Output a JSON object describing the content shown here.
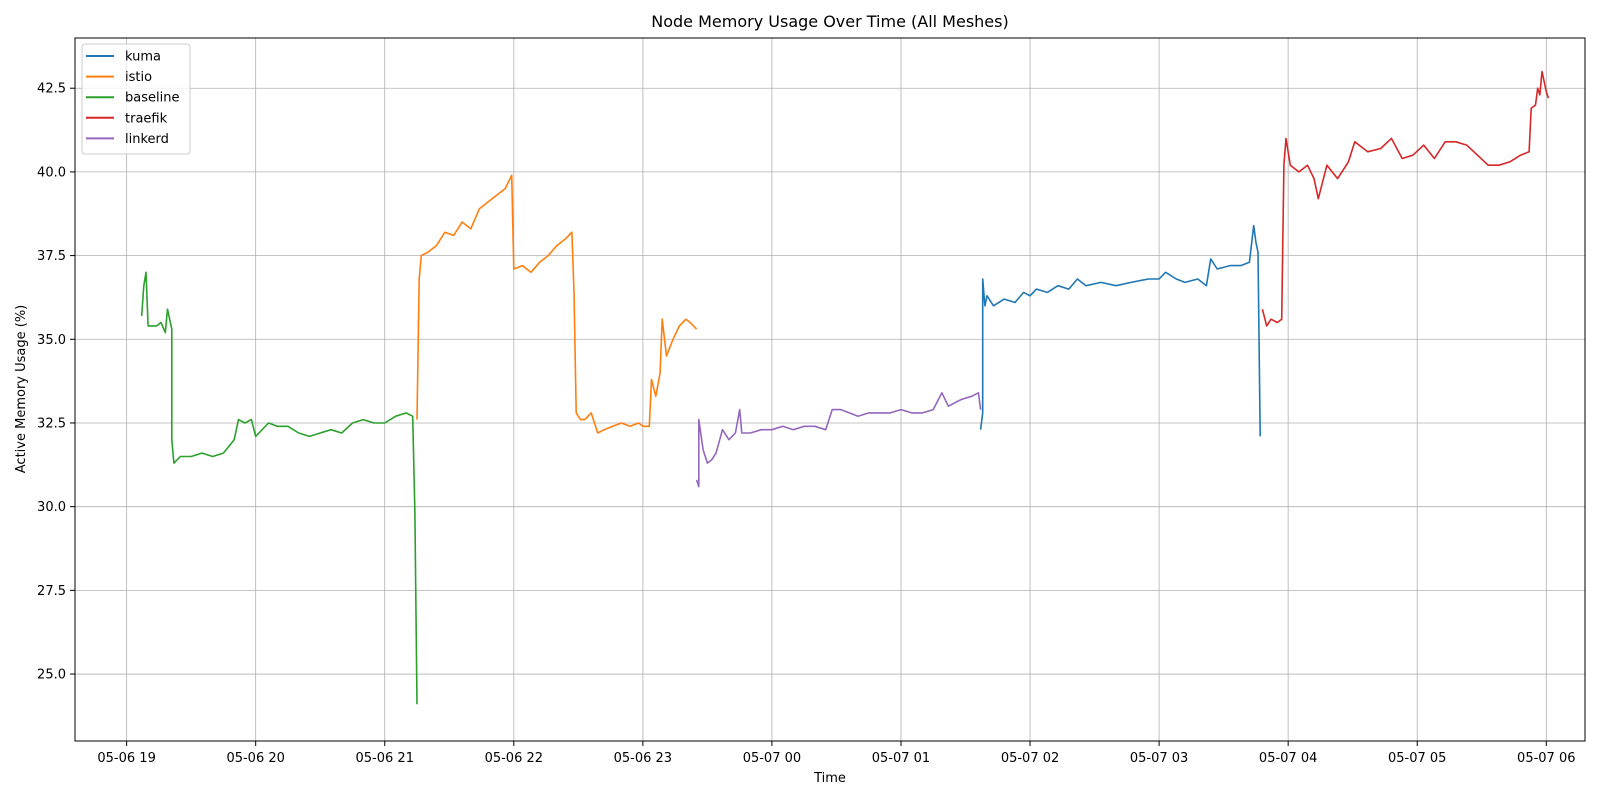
{
  "chart_data": {
    "type": "line",
    "title": "Node Memory Usage Over Time (All Meshes)",
    "xlabel": "Time",
    "ylabel": "Active Memory Usage (%)",
    "xlim": [
      "05-06 18:36",
      "05-07 06:18"
    ],
    "ylim": [
      23.0,
      44.0
    ],
    "x_ticks": [
      "05-06 19",
      "05-06 20",
      "05-06 21",
      "05-06 22",
      "05-06 23",
      "05-07 00",
      "05-07 01",
      "05-07 02",
      "05-07 03",
      "05-07 04",
      "05-07 05",
      "05-07 06"
    ],
    "y_ticks": [
      25.0,
      27.5,
      30.0,
      32.5,
      35.0,
      37.5,
      40.0,
      42.5
    ],
    "grid": true,
    "legend_position": "upper-left",
    "series": [
      {
        "name": "kuma",
        "color": "#1f77b4",
        "points": [
          [
            "05-07 01:37",
            32.3
          ],
          [
            "05-07 01:38",
            32.8
          ],
          [
            "05-07 01:38",
            36.8
          ],
          [
            "05-07 01:39",
            36.0
          ],
          [
            "05-07 01:40",
            36.3
          ],
          [
            "05-07 01:43",
            36.0
          ],
          [
            "05-07 01:48",
            36.2
          ],
          [
            "05-07 01:53",
            36.1
          ],
          [
            "05-07 01:57",
            36.4
          ],
          [
            "05-07 02:00",
            36.3
          ],
          [
            "05-07 02:03",
            36.5
          ],
          [
            "05-07 02:08",
            36.4
          ],
          [
            "05-07 02:13",
            36.6
          ],
          [
            "05-07 02:18",
            36.5
          ],
          [
            "05-07 02:22",
            36.8
          ],
          [
            "05-07 02:26",
            36.6
          ],
          [
            "05-07 02:33",
            36.7
          ],
          [
            "05-07 02:40",
            36.6
          ],
          [
            "05-07 02:47",
            36.7
          ],
          [
            "05-07 02:55",
            36.8
          ],
          [
            "05-07 03:00",
            36.8
          ],
          [
            "05-07 03:03",
            37.0
          ],
          [
            "05-07 03:08",
            36.8
          ],
          [
            "05-07 03:12",
            36.7
          ],
          [
            "05-07 03:18",
            36.8
          ],
          [
            "05-07 03:22",
            36.6
          ],
          [
            "05-07 03:24",
            37.4
          ],
          [
            "05-07 03:27",
            37.1
          ],
          [
            "05-07 03:33",
            37.2
          ],
          [
            "05-07 03:38",
            37.2
          ],
          [
            "05-07 03:42",
            37.3
          ],
          [
            "05-07 03:44",
            38.4
          ],
          [
            "05-07 03:45",
            37.9
          ],
          [
            "05-07 03:46",
            37.6
          ],
          [
            "05-07 03:47",
            32.1
          ]
        ]
      },
      {
        "name": "istio",
        "color": "#ff7f0e",
        "points": [
          [
            "05-06 21:15",
            32.6
          ],
          [
            "05-06 21:16",
            36.8
          ],
          [
            "05-06 21:17",
            37.5
          ],
          [
            "05-06 21:20",
            37.6
          ],
          [
            "05-06 21:24",
            37.8
          ],
          [
            "05-06 21:28",
            38.2
          ],
          [
            "05-06 21:32",
            38.1
          ],
          [
            "05-06 21:36",
            38.5
          ],
          [
            "05-06 21:40",
            38.3
          ],
          [
            "05-06 21:44",
            38.9
          ],
          [
            "05-06 21:48",
            39.1
          ],
          [
            "05-06 21:52",
            39.3
          ],
          [
            "05-06 21:56",
            39.5
          ],
          [
            "05-06 21:59",
            39.9
          ],
          [
            "05-06 22:00",
            37.1
          ],
          [
            "05-06 22:04",
            37.2
          ],
          [
            "05-06 22:08",
            37.0
          ],
          [
            "05-06 22:12",
            37.3
          ],
          [
            "05-06 22:16",
            37.5
          ],
          [
            "05-06 22:20",
            37.8
          ],
          [
            "05-06 22:24",
            38.0
          ],
          [
            "05-06 22:27",
            38.2
          ],
          [
            "05-06 22:28",
            36.4
          ],
          [
            "05-06 22:29",
            32.8
          ],
          [
            "05-06 22:31",
            32.6
          ],
          [
            "05-06 22:33",
            32.6
          ],
          [
            "05-06 22:36",
            32.8
          ],
          [
            "05-06 22:39",
            32.2
          ],
          [
            "05-06 22:42",
            32.3
          ],
          [
            "05-06 22:46",
            32.4
          ],
          [
            "05-06 22:50",
            32.5
          ],
          [
            "05-06 22:54",
            32.4
          ],
          [
            "05-06 22:58",
            32.5
          ],
          [
            "05-06 23:00",
            32.4
          ],
          [
            "05-06 23:03",
            32.4
          ],
          [
            "05-06 23:04",
            33.8
          ],
          [
            "05-06 23:06",
            33.3
          ],
          [
            "05-06 23:08",
            34.0
          ],
          [
            "05-06 23:09",
            35.6
          ],
          [
            "05-06 23:11",
            34.5
          ],
          [
            "05-06 23:14",
            35.0
          ],
          [
            "05-06 23:17",
            35.4
          ],
          [
            "05-06 23:20",
            35.6
          ],
          [
            "05-06 23:22",
            35.5
          ],
          [
            "05-06 23:25",
            35.3
          ]
        ]
      },
      {
        "name": "baseline",
        "color": "#2ca02c",
        "points": [
          [
            "05-06 19:07",
            35.7
          ],
          [
            "05-06 19:08",
            36.6
          ],
          [
            "05-06 19:09",
            37.0
          ],
          [
            "05-06 19:10",
            35.4
          ],
          [
            "05-06 19:12",
            35.4
          ],
          [
            "05-06 19:14",
            35.4
          ],
          [
            "05-06 19:16",
            35.5
          ],
          [
            "05-06 19:18",
            35.2
          ],
          [
            "05-06 19:19",
            35.9
          ],
          [
            "05-06 19:21",
            35.3
          ],
          [
            "05-06 19:21",
            32.0
          ],
          [
            "05-06 19:22",
            31.3
          ],
          [
            "05-06 19:25",
            31.5
          ],
          [
            "05-06 19:30",
            31.5
          ],
          [
            "05-06 19:35",
            31.6
          ],
          [
            "05-06 19:40",
            31.5
          ],
          [
            "05-06 19:45",
            31.6
          ],
          [
            "05-06 19:50",
            32.0
          ],
          [
            "05-06 19:52",
            32.6
          ],
          [
            "05-06 19:55",
            32.5
          ],
          [
            "05-06 19:58",
            32.6
          ],
          [
            "05-06 20:00",
            32.1
          ],
          [
            "05-06 20:03",
            32.3
          ],
          [
            "05-06 20:06",
            32.5
          ],
          [
            "05-06 20:10",
            32.4
          ],
          [
            "05-06 20:15",
            32.4
          ],
          [
            "05-06 20:20",
            32.2
          ],
          [
            "05-06 20:25",
            32.1
          ],
          [
            "05-06 20:30",
            32.2
          ],
          [
            "05-06 20:35",
            32.3
          ],
          [
            "05-06 20:40",
            32.2
          ],
          [
            "05-06 20:45",
            32.5
          ],
          [
            "05-06 20:50",
            32.6
          ],
          [
            "05-06 20:55",
            32.5
          ],
          [
            "05-06 21:00",
            32.5
          ],
          [
            "05-06 21:05",
            32.7
          ],
          [
            "05-06 21:10",
            32.8
          ],
          [
            "05-06 21:13",
            32.7
          ],
          [
            "05-06 21:14",
            29.8
          ],
          [
            "05-06 21:15",
            24.1
          ]
        ]
      },
      {
        "name": "traefik",
        "color": "#d62728",
        "points": [
          [
            "05-07 03:48",
            35.9
          ],
          [
            "05-07 03:50",
            35.4
          ],
          [
            "05-07 03:52",
            35.6
          ],
          [
            "05-07 03:55",
            35.5
          ],
          [
            "05-07 03:57",
            35.6
          ],
          [
            "05-07 03:58",
            40.2
          ],
          [
            "05-07 03:59",
            41.0
          ],
          [
            "05-07 04:01",
            40.2
          ],
          [
            "05-07 04:05",
            40.0
          ],
          [
            "05-07 04:09",
            40.2
          ],
          [
            "05-07 04:12",
            39.8
          ],
          [
            "05-07 04:14",
            39.2
          ],
          [
            "05-07 04:18",
            40.2
          ],
          [
            "05-07 04:23",
            39.8
          ],
          [
            "05-07 04:28",
            40.3
          ],
          [
            "05-07 04:31",
            40.9
          ],
          [
            "05-07 04:37",
            40.6
          ],
          [
            "05-07 04:43",
            40.7
          ],
          [
            "05-07 04:48",
            41.0
          ],
          [
            "05-07 04:53",
            40.4
          ],
          [
            "05-07 04:58",
            40.5
          ],
          [
            "05-07 05:03",
            40.8
          ],
          [
            "05-07 05:08",
            40.4
          ],
          [
            "05-07 05:13",
            40.9
          ],
          [
            "05-07 05:18",
            40.9
          ],
          [
            "05-07 05:23",
            40.8
          ],
          [
            "05-07 05:28",
            40.5
          ],
          [
            "05-07 05:33",
            40.2
          ],
          [
            "05-07 05:38",
            40.2
          ],
          [
            "05-07 05:43",
            40.3
          ],
          [
            "05-07 05:48",
            40.5
          ],
          [
            "05-07 05:52",
            40.6
          ],
          [
            "05-07 05:53",
            41.9
          ],
          [
            "05-07 05:55",
            42.0
          ],
          [
            "05-07 05:56",
            42.5
          ],
          [
            "05-07 05:57",
            42.3
          ],
          [
            "05-07 05:58",
            43.0
          ],
          [
            "05-07 06:00",
            42.4
          ],
          [
            "05-07 06:01",
            42.2
          ]
        ]
      },
      {
        "name": "linkerd",
        "color": "#9467bd",
        "points": [
          [
            "05-06 23:25",
            30.8
          ],
          [
            "05-06 23:26",
            30.6
          ],
          [
            "05-06 23:26",
            32.6
          ],
          [
            "05-06 23:28",
            31.7
          ],
          [
            "05-06 23:30",
            31.3
          ],
          [
            "05-06 23:32",
            31.4
          ],
          [
            "05-06 23:34",
            31.6
          ],
          [
            "05-06 23:37",
            32.3
          ],
          [
            "05-06 23:40",
            32.0
          ],
          [
            "05-06 23:43",
            32.2
          ],
          [
            "05-06 23:45",
            32.9
          ],
          [
            "05-06 23:46",
            32.2
          ],
          [
            "05-06 23:50",
            32.2
          ],
          [
            "05-06 23:55",
            32.3
          ],
          [
            "05-07 00:00",
            32.3
          ],
          [
            "05-07 00:05",
            32.4
          ],
          [
            "05-07 00:10",
            32.3
          ],
          [
            "05-07 00:15",
            32.4
          ],
          [
            "05-07 00:20",
            32.4
          ],
          [
            "05-07 00:25",
            32.3
          ],
          [
            "05-07 00:28",
            32.9
          ],
          [
            "05-07 00:32",
            32.9
          ],
          [
            "05-07 00:36",
            32.8
          ],
          [
            "05-07 00:40",
            32.7
          ],
          [
            "05-07 00:45",
            32.8
          ],
          [
            "05-07 00:50",
            32.8
          ],
          [
            "05-07 00:55",
            32.8
          ],
          [
            "05-07 01:00",
            32.9
          ],
          [
            "05-07 01:05",
            32.8
          ],
          [
            "05-07 01:10",
            32.8
          ],
          [
            "05-07 01:15",
            32.9
          ],
          [
            "05-07 01:19",
            33.4
          ],
          [
            "05-07 01:22",
            33.0
          ],
          [
            "05-07 01:28",
            33.2
          ],
          [
            "05-07 01:33",
            33.3
          ],
          [
            "05-07 01:36",
            33.4
          ],
          [
            "05-07 01:37",
            32.9
          ]
        ]
      }
    ]
  }
}
